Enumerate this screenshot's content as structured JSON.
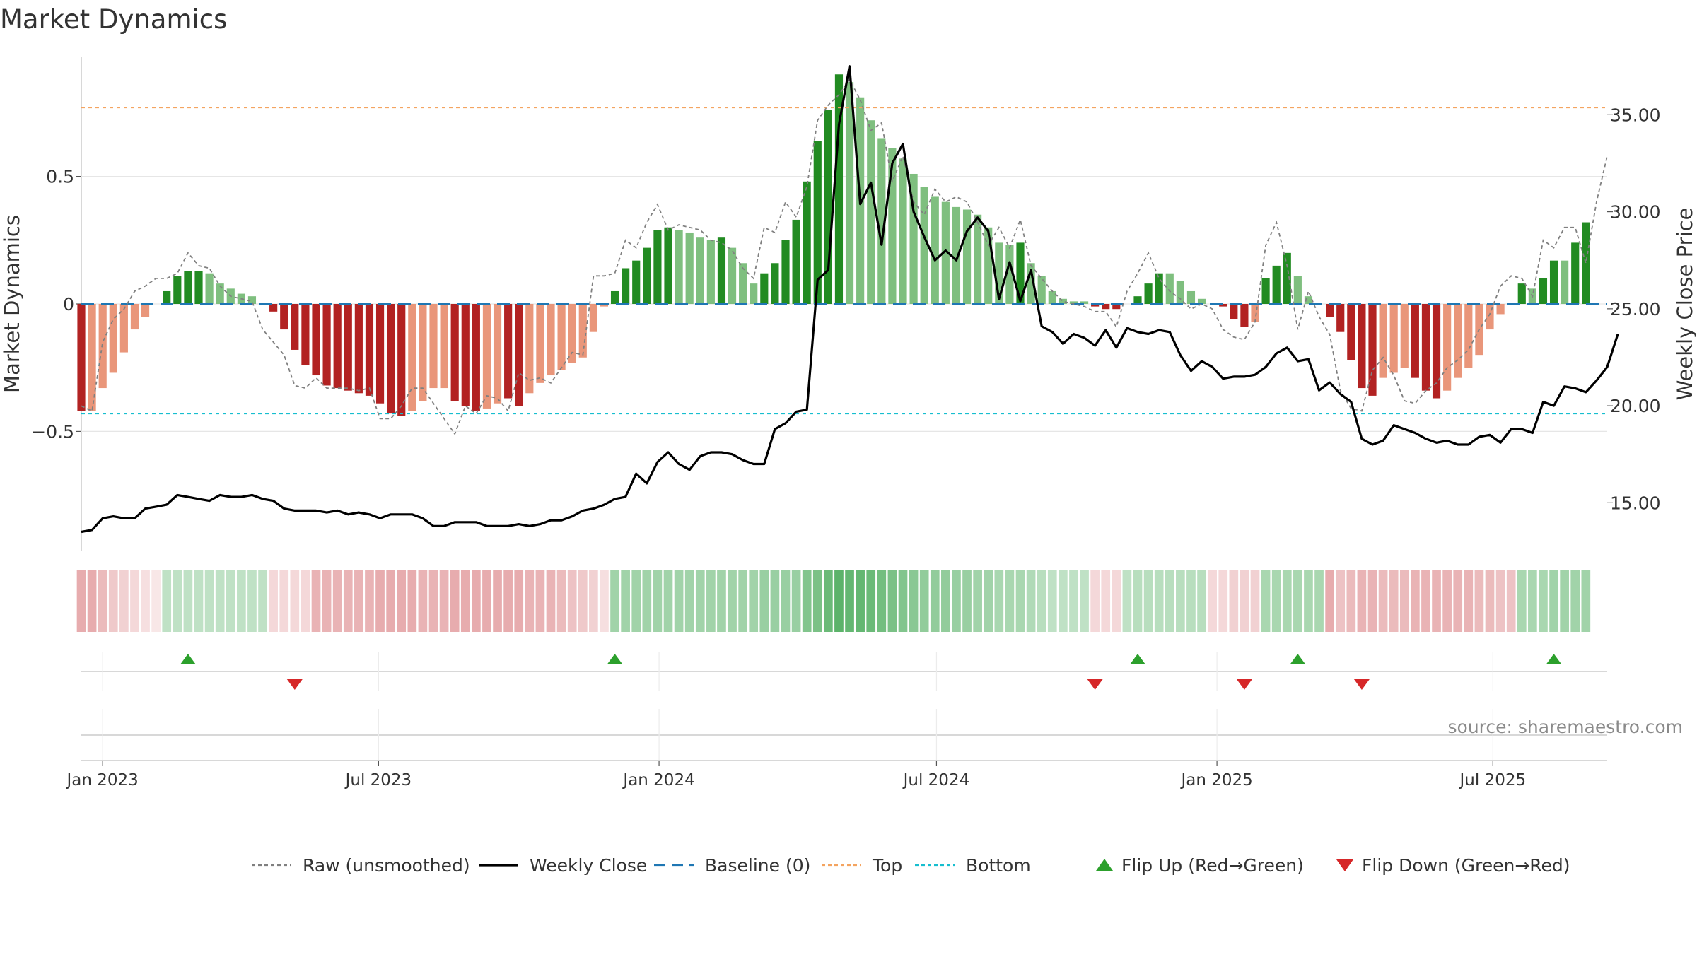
{
  "title": "Market Dynamics",
  "source": "source: sharemaestro.com",
  "y_left_label": "Market Dynamics",
  "y_right_label": "Weekly Close Price",
  "colors": {
    "strong_red": "#b22222",
    "light_red": "#e9967a",
    "strong_green": "#228b22",
    "light_green": "#7fbf7f",
    "top_line": "#f4a460",
    "bottom_line": "#17becf",
    "baseline": "#1f77b4",
    "flip_up": "#2ca02c",
    "flip_down": "#d62728",
    "raw": "#808080",
    "close": "#000000"
  },
  "chart_data": {
    "type": "bar",
    "title": "Market Dynamics",
    "x_tick_labels": [
      "Jan 2023",
      "Jul 2023",
      "Jan 2024",
      "Jul 2024",
      "Jan 2025",
      "Jul 2025"
    ],
    "x_tick_dates": [
      "2023-01-01",
      "2023-07-01",
      "2024-01-01",
      "2024-07-01",
      "2025-01-01",
      "2025-07-01"
    ],
    "x_range": [
      "2022-12-18",
      "2025-09-14"
    ],
    "y_left": {
      "label": "Market Dynamics",
      "range": [
        -0.97,
        0.97
      ],
      "ticks": [
        -0.5,
        0,
        0.5
      ],
      "tick_labels": [
        "−0.5",
        "0",
        "0.5"
      ]
    },
    "y_right": {
      "label": "Weekly Close Price",
      "range": [
        12.5,
        38.0
      ],
      "ticks": [
        15,
        20,
        25,
        30,
        35
      ],
      "tick_labels": [
        "15.00",
        "20.00",
        "25.00",
        "30.00",
        "35.00"
      ]
    },
    "top_level": 0.77,
    "bottom_level": -0.43,
    "baseline": 0,
    "start_date": "2022-12-18",
    "week_step_days": 7,
    "bars": [
      -0.42,
      -0.42,
      -0.33,
      -0.27,
      -0.19,
      -0.1,
      -0.05,
      0.0,
      0.05,
      0.11,
      0.13,
      0.13,
      0.12,
      0.08,
      0.06,
      0.04,
      0.03,
      0.0,
      -0.03,
      -0.1,
      -0.18,
      -0.24,
      -0.28,
      -0.32,
      -0.33,
      -0.34,
      -0.35,
      -0.36,
      -0.39,
      -0.43,
      -0.44,
      -0.42,
      -0.38,
      -0.33,
      -0.33,
      -0.38,
      -0.4,
      -0.42,
      -0.41,
      -0.39,
      -0.37,
      -0.4,
      -0.35,
      -0.31,
      -0.28,
      -0.26,
      -0.23,
      -0.21,
      -0.11,
      -0.01,
      0.05,
      0.14,
      0.17,
      0.22,
      0.29,
      0.3,
      0.29,
      0.28,
      0.26,
      0.25,
      0.26,
      0.22,
      0.16,
      0.08,
      0.12,
      0.16,
      0.25,
      0.33,
      0.48,
      0.64,
      0.76,
      0.9,
      0.87,
      0.81,
      0.72,
      0.65,
      0.61,
      0.57,
      0.51,
      0.46,
      0.42,
      0.4,
      0.38,
      0.37,
      0.35,
      0.3,
      0.24,
      0.23,
      0.24,
      0.16,
      0.11,
      0.05,
      0.02,
      0.01,
      0.01,
      -0.01,
      -0.02,
      -0.02,
      0.0,
      0.03,
      0.08,
      0.12,
      0.12,
      0.09,
      0.05,
      0.02,
      0.0,
      -0.01,
      -0.06,
      -0.09,
      -0.07,
      0.1,
      0.15,
      0.2,
      0.11,
      0.03,
      0.0,
      -0.05,
      -0.11,
      -0.22,
      -0.33,
      -0.36,
      -0.29,
      -0.27,
      -0.25,
      -0.29,
      -0.34,
      -0.37,
      -0.34,
      -0.29,
      -0.25,
      -0.2,
      -0.1,
      -0.04,
      0.0,
      0.08,
      0.06,
      0.1,
      0.17,
      0.17,
      0.24,
      0.32
    ],
    "bar_strength": [
      "strong",
      "light",
      "light",
      "light",
      "light",
      "light",
      "light",
      "light",
      "strong",
      "strong",
      "strong",
      "strong",
      "light",
      "light",
      "light",
      "light",
      "light",
      "light",
      "strong",
      "strong",
      "strong",
      "strong",
      "strong",
      "strong",
      "strong",
      "strong",
      "strong",
      "strong",
      "strong",
      "strong",
      "strong",
      "light",
      "light",
      "light",
      "light",
      "strong",
      "strong",
      "strong",
      "light",
      "light",
      "strong",
      "strong",
      "light",
      "light",
      "light",
      "light",
      "light",
      "light",
      "light",
      "light",
      "strong",
      "strong",
      "strong",
      "strong",
      "strong",
      "strong",
      "light",
      "light",
      "light",
      "light",
      "strong",
      "light",
      "light",
      "light",
      "strong",
      "strong",
      "strong",
      "strong",
      "strong",
      "strong",
      "strong",
      "strong",
      "light",
      "light",
      "light",
      "light",
      "light",
      "light",
      "light",
      "light",
      "light",
      "light",
      "light",
      "light",
      "light",
      "light",
      "light",
      "light",
      "strong",
      "light",
      "light",
      "light",
      "light",
      "light",
      "light",
      "strong",
      "strong",
      "strong",
      "light",
      "strong",
      "strong",
      "strong",
      "light",
      "light",
      "light",
      "light",
      "light",
      "strong",
      "strong",
      "strong",
      "light",
      "strong",
      "strong",
      "strong",
      "light",
      "light",
      "light",
      "strong",
      "strong",
      "strong",
      "strong",
      "strong",
      "light",
      "light",
      "light",
      "strong",
      "strong",
      "strong",
      "light",
      "light",
      "light",
      "light",
      "light",
      "light",
      "light",
      "strong",
      "light",
      "strong",
      "strong",
      "light",
      "strong",
      "strong"
    ],
    "raw": [
      -0.4,
      -0.42,
      -0.15,
      -0.06,
      -0.02,
      0.05,
      0.07,
      0.1,
      0.1,
      0.12,
      0.2,
      0.15,
      0.14,
      0.07,
      0.03,
      0.02,
      0.01,
      -0.1,
      -0.15,
      -0.2,
      -0.32,
      -0.33,
      -0.29,
      -0.33,
      -0.33,
      -0.33,
      -0.34,
      -0.33,
      -0.45,
      -0.45,
      -0.4,
      -0.33,
      -0.33,
      -0.39,
      -0.45,
      -0.51,
      -0.4,
      -0.43,
      -0.36,
      -0.37,
      -0.42,
      -0.27,
      -0.3,
      -0.29,
      -0.31,
      -0.25,
      -0.19,
      -0.2,
      0.11,
      0.11,
      0.12,
      0.25,
      0.22,
      0.32,
      0.39,
      0.29,
      0.31,
      0.3,
      0.29,
      0.25,
      0.24,
      0.21,
      0.14,
      0.1,
      0.3,
      0.28,
      0.4,
      0.34,
      0.46,
      0.72,
      0.78,
      0.82,
      0.88,
      0.8,
      0.68,
      0.71,
      0.48,
      0.58,
      0.4,
      0.35,
      0.45,
      0.4,
      0.42,
      0.4,
      0.32,
      0.23,
      0.3,
      0.22,
      0.33,
      0.15,
      0.1,
      0.05,
      0.01,
      0.0,
      -0.01,
      -0.03,
      -0.03,
      -0.09,
      0.05,
      0.12,
      0.2,
      0.1,
      0.05,
      0.02,
      -0.02,
      0.0,
      -0.02,
      -0.1,
      -0.13,
      -0.14,
      -0.07,
      0.23,
      0.32,
      0.15,
      -0.1,
      0.05,
      -0.05,
      -0.12,
      -0.34,
      -0.41,
      -0.42,
      -0.26,
      -0.21,
      -0.28,
      -0.38,
      -0.39,
      -0.34,
      -0.31,
      -0.25,
      -0.22,
      -0.18,
      -0.1,
      -0.04,
      0.07,
      0.11,
      0.1,
      0.03,
      0.25,
      0.22,
      0.3,
      0.3,
      0.16,
      0.4,
      0.58
    ],
    "close": [
      13.5,
      13.6,
      14.2,
      14.3,
      14.2,
      14.2,
      14.7,
      14.8,
      14.9,
      15.4,
      15.3,
      15.2,
      15.1,
      15.4,
      15.3,
      15.3,
      15.4,
      15.2,
      15.1,
      14.7,
      14.6,
      14.6,
      14.6,
      14.5,
      14.6,
      14.4,
      14.5,
      14.4,
      14.2,
      14.4,
      14.4,
      14.4,
      14.2,
      13.8,
      13.8,
      14.0,
      14.0,
      14.0,
      13.8,
      13.8,
      13.8,
      13.9,
      13.8,
      13.9,
      14.1,
      14.1,
      14.3,
      14.6,
      14.7,
      14.9,
      15.2,
      15.3,
      16.5,
      16.0,
      17.1,
      17.6,
      17.0,
      16.7,
      17.4,
      17.6,
      17.6,
      17.5,
      17.2,
      17.0,
      17.0,
      18.8,
      19.1,
      19.7,
      19.8,
      26.5,
      27.0,
      34.5,
      37.5,
      30.4,
      31.5,
      28.3,
      32.5,
      33.5,
      30.0,
      28.7,
      27.5,
      28.0,
      27.5,
      29.0,
      29.7,
      29.0,
      25.5,
      27.4,
      25.4,
      27.0,
      24.1,
      23.8,
      23.2,
      23.7,
      23.5,
      23.1,
      23.9,
      23.0,
      24.0,
      23.8,
      23.7,
      23.9,
      23.8,
      22.6,
      21.8,
      22.3,
      22.0,
      21.4,
      21.5,
      21.5,
      21.6,
      22.0,
      22.7,
      23.0,
      22.3,
      22.4,
      20.8,
      21.2,
      20.6,
      20.2,
      18.3,
      18.0,
      18.2,
      19.0,
      18.8,
      18.6,
      18.3,
      18.1,
      18.2,
      18.0,
      18.0,
      18.4,
      18.5,
      18.1,
      18.8,
      18.8,
      18.6,
      20.2,
      20.0,
      21.0,
      20.9,
      20.7,
      21.3,
      22.0,
      23.7
    ],
    "heatmap_strength": [
      0.45,
      0.45,
      0.35,
      0.25,
      0.2,
      0.15,
      0.1,
      0.05,
      0.3,
      0.3,
      0.3,
      0.3,
      0.3,
      0.3,
      0.3,
      0.3,
      0.3,
      0.3,
      0.15,
      0.15,
      0.15,
      0.15,
      0.4,
      0.4,
      0.4,
      0.4,
      0.4,
      0.4,
      0.45,
      0.45,
      0.45,
      0.45,
      0.4,
      0.4,
      0.4,
      0.45,
      0.45,
      0.45,
      0.45,
      0.45,
      0.45,
      0.45,
      0.4,
      0.4,
      0.4,
      0.35,
      0.3,
      0.25,
      0.2,
      0.1,
      0.5,
      0.5,
      0.5,
      0.5,
      0.5,
      0.5,
      0.5,
      0.5,
      0.5,
      0.5,
      0.5,
      0.5,
      0.5,
      0.5,
      0.55,
      0.55,
      0.55,
      0.55,
      0.7,
      0.75,
      0.85,
      0.95,
      0.9,
      0.9,
      0.85,
      0.8,
      0.75,
      0.7,
      0.65,
      0.6,
      0.6,
      0.6,
      0.55,
      0.55,
      0.5,
      0.5,
      0.45,
      0.45,
      0.45,
      0.4,
      0.35,
      0.3,
      0.3,
      0.3,
      0.3,
      0.15,
      0.15,
      0.15,
      0.3,
      0.35,
      0.35,
      0.35,
      0.35,
      0.35,
      0.35,
      0.35,
      0.15,
      0.15,
      0.2,
      0.2,
      0.2,
      0.45,
      0.45,
      0.45,
      0.45,
      0.45,
      0.45,
      0.45,
      0.3,
      0.35,
      0.4,
      0.4,
      0.35,
      0.35,
      0.35,
      0.4,
      0.4,
      0.4,
      0.4,
      0.4,
      0.4,
      0.35,
      0.35,
      0.3,
      0.3,
      0.45,
      0.45,
      0.45,
      0.5,
      0.5,
      0.5,
      0.5
    ],
    "heatmap_dir": [
      "r",
      "r",
      "r",
      "r",
      "r",
      "r",
      "r",
      "r",
      "g",
      "g",
      "g",
      "g",
      "g",
      "g",
      "g",
      "g",
      "g",
      "g",
      "r",
      "r",
      "r",
      "r",
      "r",
      "r",
      "r",
      "r",
      "r",
      "r",
      "r",
      "r",
      "r",
      "r",
      "r",
      "r",
      "r",
      "r",
      "r",
      "r",
      "r",
      "r",
      "r",
      "r",
      "r",
      "r",
      "r",
      "r",
      "r",
      "r",
      "r",
      "r",
      "g",
      "g",
      "g",
      "g",
      "g",
      "g",
      "g",
      "g",
      "g",
      "g",
      "g",
      "g",
      "g",
      "g",
      "g",
      "g",
      "g",
      "g",
      "g",
      "g",
      "g",
      "g",
      "g",
      "g",
      "g",
      "g",
      "g",
      "g",
      "g",
      "g",
      "g",
      "g",
      "g",
      "g",
      "g",
      "g",
      "g",
      "g",
      "g",
      "g",
      "g",
      "g",
      "g",
      "g",
      "g",
      "r",
      "r",
      "r",
      "g",
      "g",
      "g",
      "g",
      "g",
      "g",
      "g",
      "g",
      "r",
      "r",
      "r",
      "r",
      "r",
      "g",
      "g",
      "g",
      "g",
      "g",
      "g",
      "r",
      "r",
      "r",
      "r",
      "r",
      "r",
      "r",
      "r",
      "r",
      "r",
      "r",
      "r",
      "r",
      "r",
      "r",
      "r",
      "r",
      "r",
      "g",
      "g",
      "g",
      "g",
      "g",
      "g",
      "g"
    ],
    "flips_up": [
      "2023-02-26",
      "2023-12-03",
      "2024-11-10",
      "2025-02-23",
      "2025-08-10"
    ],
    "flips_down": [
      "2023-05-07",
      "2024-10-13",
      "2025-01-19",
      "2025-04-06"
    ],
    "legend": [
      {
        "label": "Raw (unsmoothed)",
        "kind": "dotted",
        "color": "#808080"
      },
      {
        "label": "Weekly Close",
        "kind": "solid",
        "color": "#000000"
      },
      {
        "label": "Baseline (0)",
        "kind": "dashed",
        "color": "#1f77b4"
      },
      {
        "label": "Top",
        "kind": "dotted",
        "color": "#f4a460"
      },
      {
        "label": "Bottom",
        "kind": "dotted",
        "color": "#17becf"
      },
      {
        "label": "Flip Up (Red→Green)",
        "kind": "tri-up",
        "color": "#2ca02c"
      },
      {
        "label": "Flip Down (Green→Red)",
        "kind": "tri-down",
        "color": "#d62728"
      }
    ],
    "legend_position": "bottom-center",
    "grid": true
  }
}
